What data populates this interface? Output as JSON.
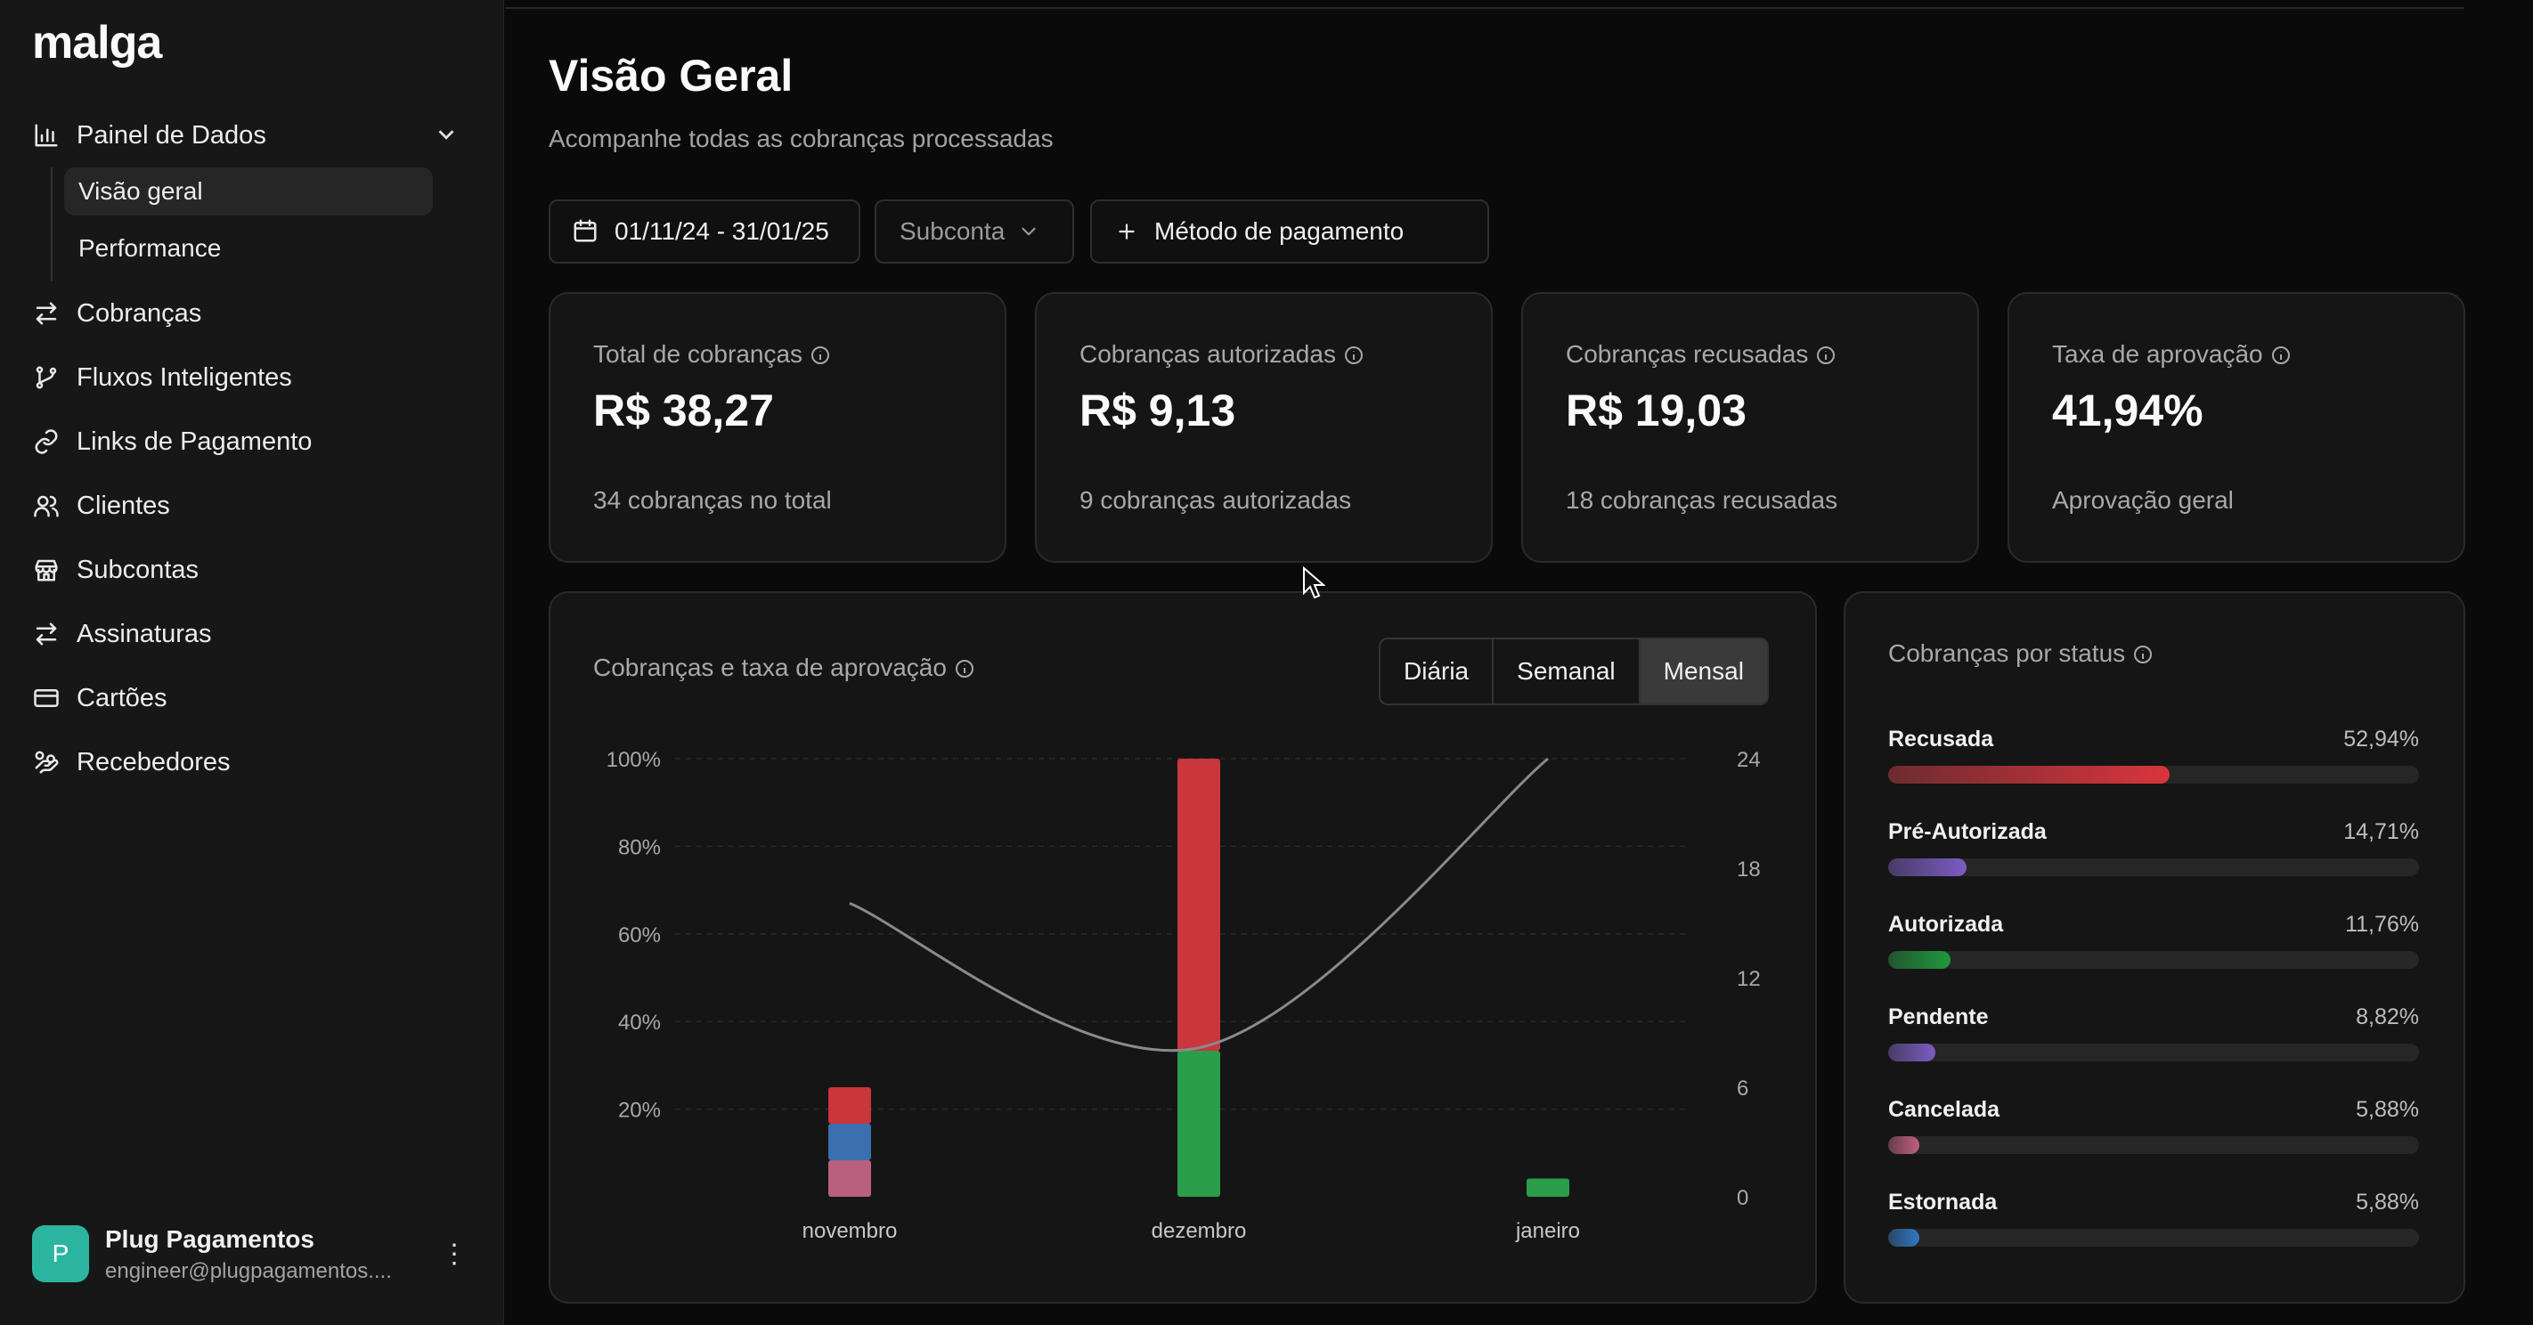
{
  "sidebar": {
    "logo": "malga",
    "dashboard": {
      "label": "Painel de Dados",
      "icon": "bar-chart-icon",
      "expanded": true,
      "children": [
        {
          "label": "Visão geral",
          "active": true
        },
        {
          "label": "Performance",
          "active": false
        }
      ]
    },
    "items": [
      {
        "label": "Cobranças",
        "icon": "arrows-swap-icon"
      },
      {
        "label": "Fluxos Inteligentes",
        "icon": "git-branch-icon"
      },
      {
        "label": "Links de Pagamento",
        "icon": "link-icon"
      },
      {
        "label": "Clientes",
        "icon": "users-icon"
      },
      {
        "label": "Subcontas",
        "icon": "store-icon"
      },
      {
        "label": "Assinaturas",
        "icon": "repeat-icon"
      },
      {
        "label": "Cartões",
        "icon": "credit-card-icon"
      },
      {
        "label": "Recebedores",
        "icon": "hand-coins-icon"
      }
    ],
    "user": {
      "initial": "P",
      "name": "Plug Pagamentos",
      "email": "engineer@plugpagamentos...."
    }
  },
  "header": {
    "title": "Visão Geral",
    "subtitle": "Acompanhe todas as cobranças processadas"
  },
  "filters": {
    "date_range": "01/11/24 - 31/01/25",
    "subaccount_placeholder": "Subconta",
    "payment_method": "Método de pagamento"
  },
  "cards": [
    {
      "label": "Total de cobranças",
      "value": "R$ 38,27",
      "sub": "34 cobranças no total"
    },
    {
      "label": "Cobranças autorizadas",
      "value": "R$ 9,13",
      "sub": "9 cobranças autorizadas"
    },
    {
      "label": "Cobranças recusadas",
      "value": "R$ 19,03",
      "sub": "18 cobranças recusadas"
    },
    {
      "label": "Taxa de aprovação",
      "value": "41,94%",
      "sub": "Aprovação geral"
    }
  ],
  "chart_panel": {
    "title": "Cobranças e taxa de aprovação",
    "tabs": [
      "Diária",
      "Semanal",
      "Mensal"
    ],
    "active_tab": "Mensal"
  },
  "chart_data": {
    "type": "bar",
    "stacked": true,
    "categories": [
      "novembro",
      "dezembro",
      "janeiro"
    ],
    "series": [
      {
        "color": "#2a9d4a",
        "values": [
          0,
          8,
          1
        ]
      },
      {
        "color": "#b8607e",
        "values": [
          2,
          0,
          0
        ]
      },
      {
        "color": "#3b6fb0",
        "values": [
          2,
          0,
          0
        ]
      },
      {
        "color": "#c9363c",
        "values": [
          2,
          16,
          0
        ]
      }
    ],
    "line": {
      "axis": "left",
      "values": [
        67,
        34,
        100
      ]
    },
    "left_ticks": [
      "20%",
      "40%",
      "60%",
      "80%",
      "100%"
    ],
    "right_ticks": [
      "0",
      "6",
      "12",
      "18",
      "24"
    ],
    "ylim_left": [
      0,
      100
    ],
    "ylim_right": [
      0,
      24
    ]
  },
  "status_panel": {
    "title": "Cobranças por status",
    "rows": [
      {
        "name": "Recusada",
        "pct": "52,94%",
        "value": 52.94,
        "color": "#d8353d"
      },
      {
        "name": "Pré-Autorizada",
        "pct": "14,71%",
        "value": 14.71,
        "color": "#7c5cc4"
      },
      {
        "name": "Autorizada",
        "pct": "11,76%",
        "value": 11.76,
        "color": "#1e9a3e"
      },
      {
        "name": "Pendente",
        "pct": "8,82%",
        "value": 8.82,
        "color": "#7c5cc4"
      },
      {
        "name": "Cancelada",
        "pct": "5,88%",
        "value": 5.88,
        "color": "#c0607f"
      },
      {
        "name": "Estornada",
        "pct": "5,88%",
        "value": 5.88,
        "color": "#2f78c4"
      }
    ]
  }
}
